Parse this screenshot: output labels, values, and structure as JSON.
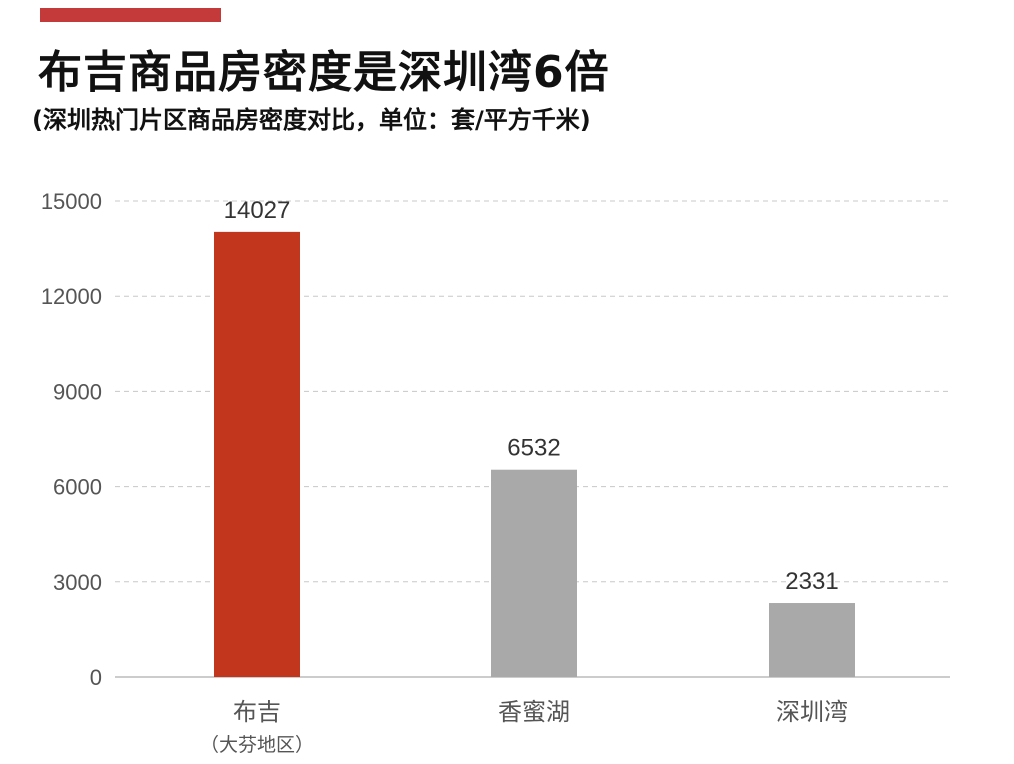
{
  "header": {
    "title": "布吉商品房密度是深圳湾6倍",
    "subtitle": "(深圳热门片区商品房密度对比，单位：套/平方千米)"
  },
  "colors": {
    "accent": "#c4393a",
    "highlight_bar": "#c1361c",
    "normal_bar": "#a9a9a9",
    "grid": "#c8c8c8"
  },
  "chart_data": {
    "type": "bar",
    "title": "布吉商品房密度是深圳湾6倍",
    "subtitle": "(深圳热门片区商品房密度对比，单位：套/平方千米)",
    "categories": [
      "布吉",
      "香蜜湖",
      "深圳湾"
    ],
    "category_sublabels": [
      "（大芬地区）",
      "",
      ""
    ],
    "values": [
      14027,
      6532,
      2331
    ],
    "data_labels": [
      "14027",
      "6532",
      "2331"
    ],
    "highlight_index": 0,
    "ylim": [
      0,
      15000
    ],
    "yticks": [
      0,
      3000,
      6000,
      9000,
      12000,
      15000
    ],
    "ytick_labels": [
      "0",
      "3000",
      "6000",
      "9000",
      "12000",
      "15000"
    ],
    "xlabel": "",
    "ylabel": "",
    "grid": true,
    "grid_style": "dashed"
  }
}
